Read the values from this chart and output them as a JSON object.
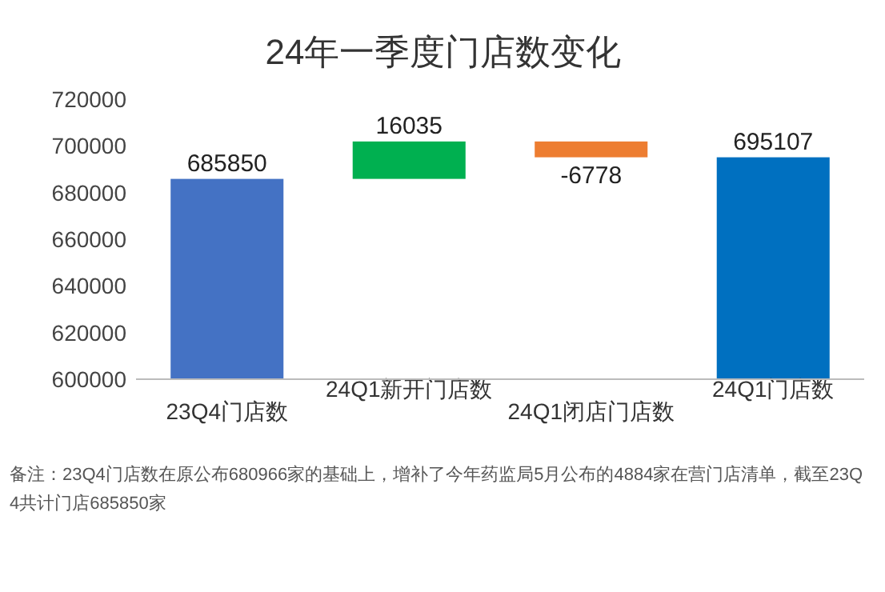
{
  "chart_data": {
    "type": "bar",
    "title": "24年一季度门店数变化",
    "categories": [
      "23Q4门店数",
      "24Q1新开门店数",
      "24Q1闭店门店数",
      "24Q1门店数"
    ],
    "values": [
      685850,
      16035,
      -6778,
      695107
    ],
    "base": [
      null,
      685850,
      701885,
      null
    ],
    "colors": [
      "#4472c4",
      "#00b050",
      "#ed7d31",
      "#0070c0"
    ],
    "ylim": [
      600000,
      720000
    ],
    "yticks": [
      600000,
      620000,
      640000,
      660000,
      680000,
      700000,
      720000
    ],
    "data_labels": true,
    "annotations": [
      "备注：23Q4门店数在原公布680966家的基础上，增补了今年药监局5月公布的4884家在营门店清单，截至23Q4共计门店685850家"
    ]
  }
}
